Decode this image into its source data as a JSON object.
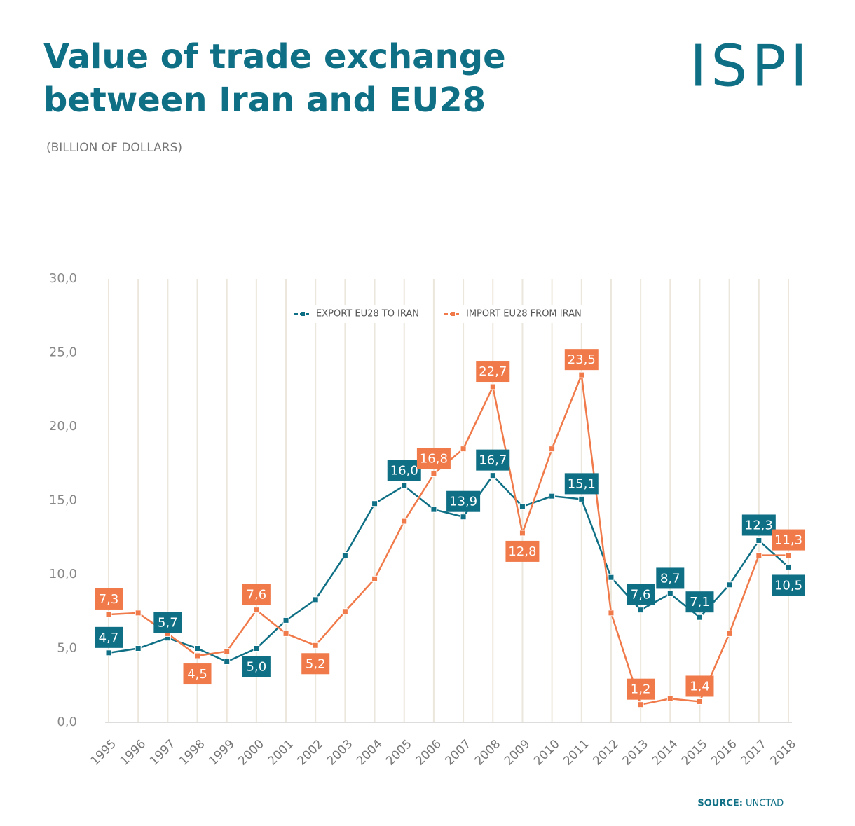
{
  "chart_data": {
    "type": "line",
    "title": "Value of trade exchange",
    "title_line2": "between Iran and EU28",
    "subtitle": "(BILLION OF DOLLARS)",
    "logo": "ISPI",
    "source_label": "SOURCE:",
    "source": "UNCTAD",
    "categories": [
      "1995",
      "1996",
      "1997",
      "1998",
      "1999",
      "2000",
      "2001",
      "2002",
      "2003",
      "2004",
      "2005",
      "2006",
      "2007",
      "2008",
      "2009",
      "2010",
      "2011",
      "2012",
      "2013",
      "2014",
      "2015",
      "2016",
      "2017",
      "2018"
    ],
    "series": [
      {
        "name": "EXPORT EU28 TO IRAN",
        "color": "#0e6f85",
        "values": [
          4.7,
          5.0,
          5.7,
          5.0,
          4.1,
          5.0,
          6.9,
          8.3,
          11.3,
          14.8,
          16.0,
          14.4,
          13.9,
          16.7,
          14.6,
          15.3,
          15.1,
          9.8,
          7.6,
          8.7,
          7.1,
          9.3,
          12.3,
          10.5
        ],
        "value_labels": [
          "4,7",
          null,
          "5,7",
          null,
          null,
          "5,0",
          null,
          null,
          null,
          null,
          "16,0",
          null,
          "13,9",
          "16,7",
          null,
          null,
          "15,1",
          null,
          "7,6",
          "8,7",
          "7,1",
          null,
          "12,3",
          "10,5"
        ]
      },
      {
        "name": "IMPORT EU28 FROM IRAN",
        "color": "#f07a4a",
        "values": [
          7.3,
          7.4,
          6.0,
          4.5,
          4.8,
          7.6,
          6.0,
          5.2,
          7.5,
          9.7,
          13.6,
          16.8,
          18.5,
          22.7,
          12.8,
          18.5,
          23.5,
          7.4,
          1.2,
          1.6,
          1.4,
          6.0,
          11.3,
          11.3
        ],
        "value_labels": [
          "7,3",
          null,
          null,
          "4,5",
          null,
          "7,6",
          null,
          "5,2",
          null,
          null,
          null,
          "16,8",
          null,
          "22,7",
          "12,8",
          null,
          "23,5",
          null,
          "1,2",
          null,
          "1,4",
          null,
          null,
          "11,3"
        ]
      }
    ],
    "ylim": [
      0,
      30
    ],
    "yticks": [
      {
        "value": 0,
        "label": "0,0"
      },
      {
        "value": 5,
        "label": "5,0"
      },
      {
        "value": 10,
        "label": "10,0"
      },
      {
        "value": 15,
        "label": "15,0"
      },
      {
        "value": 20,
        "label": "20,0"
      },
      {
        "value": 25,
        "label": "25,0"
      },
      {
        "value": 30,
        "label": "30,0"
      }
    ],
    "legend": "top"
  }
}
